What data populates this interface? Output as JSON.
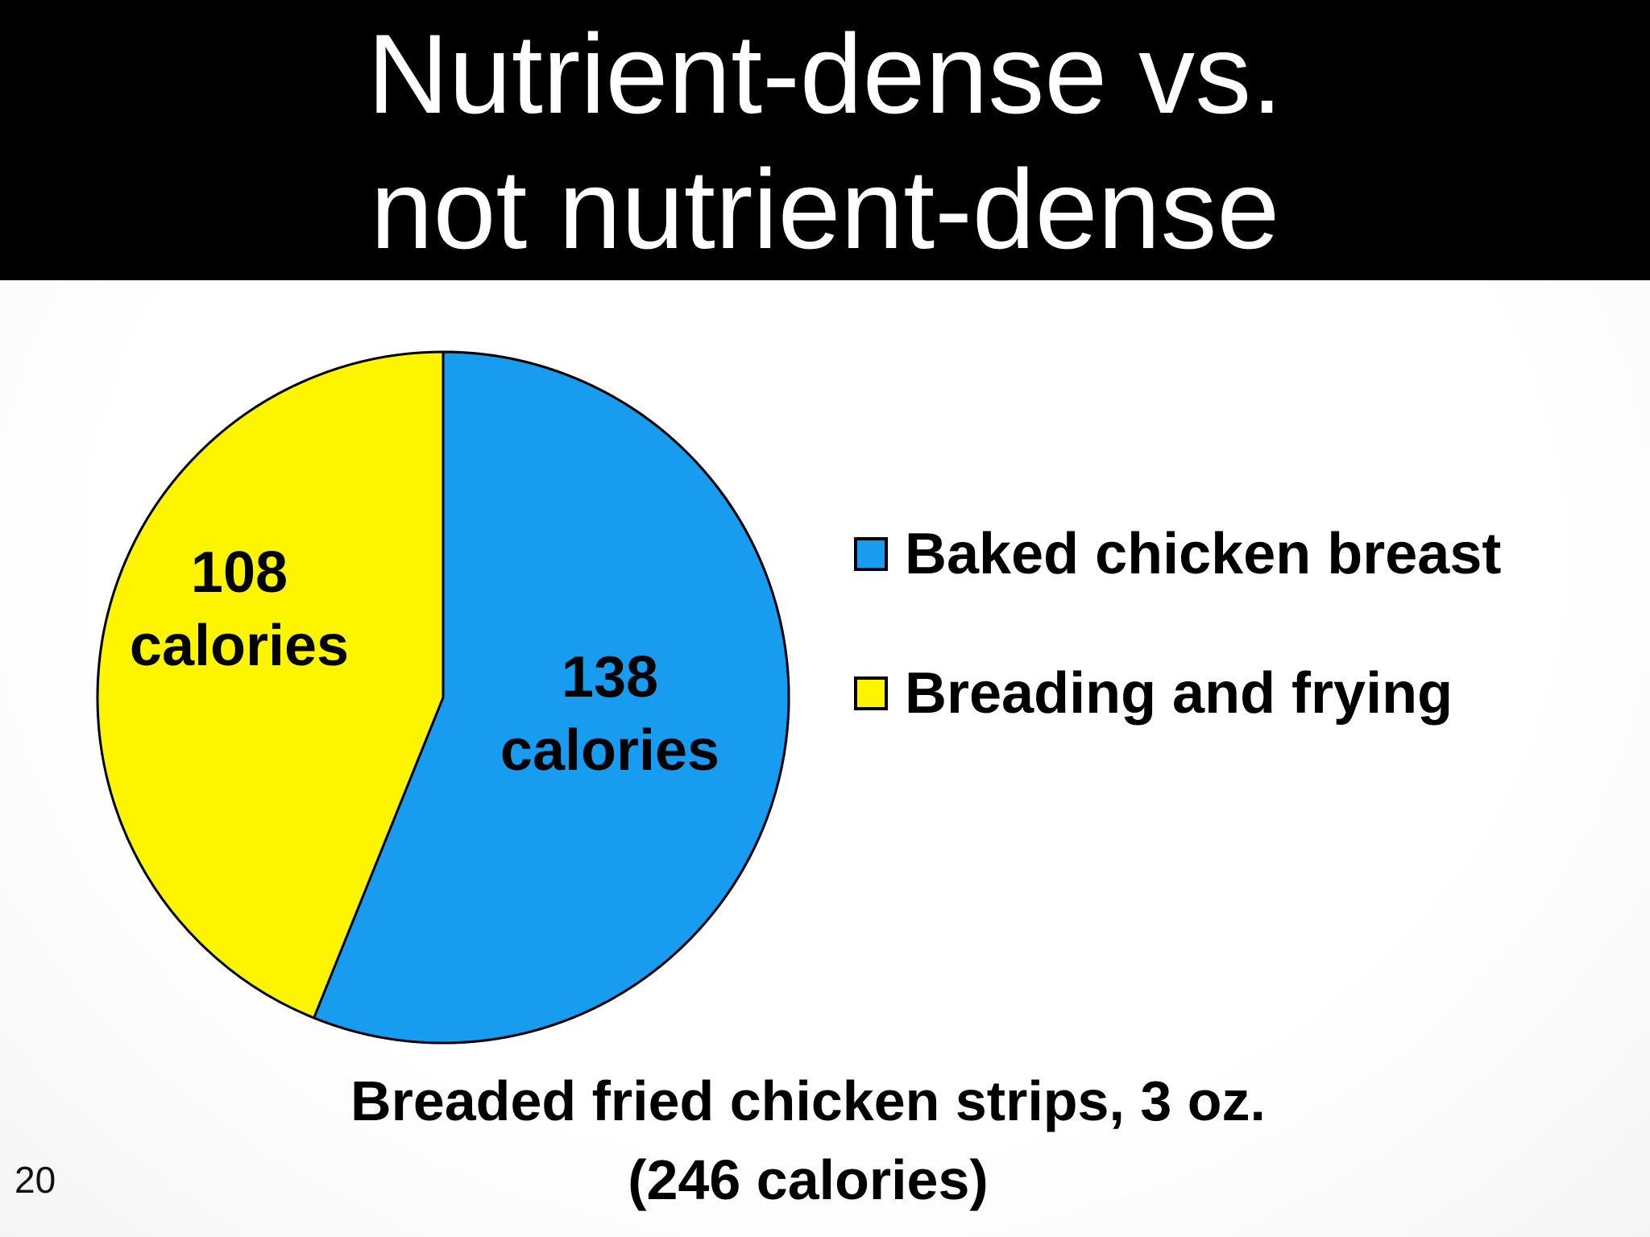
{
  "title": {
    "line1": "Nutrient-dense vs.",
    "line2": "not nutrient-dense"
  },
  "caption": {
    "line1": "Breaded fried chicken strips, 3 oz.",
    "line2": "(246 calories)"
  },
  "page_number": "20",
  "colors": {
    "banner": "#000000",
    "title_text": "#ffffff",
    "pie_outline": "#000000",
    "label_text": "#000000"
  },
  "chart_data": {
    "type": "pie",
    "title": "Nutrient-dense vs. not nutrient-dense",
    "caption": "Breaded fried chicken strips, 3 oz. (246 calories)",
    "total_calories": 246,
    "start_angle_deg": 0,
    "direction": "clockwise",
    "legend_position": "right",
    "slices": [
      {
        "label": "Baked chicken breast",
        "value": 138,
        "unit": "calories",
        "value_text": "138",
        "unit_text": "calories",
        "color": "#189CF0",
        "percent": 56.1
      },
      {
        "label": "Breading and frying",
        "value": 108,
        "unit": "calories",
        "value_text": "108",
        "unit_text": "calories",
        "color": "#FDF500",
        "percent": 43.9
      }
    ]
  }
}
